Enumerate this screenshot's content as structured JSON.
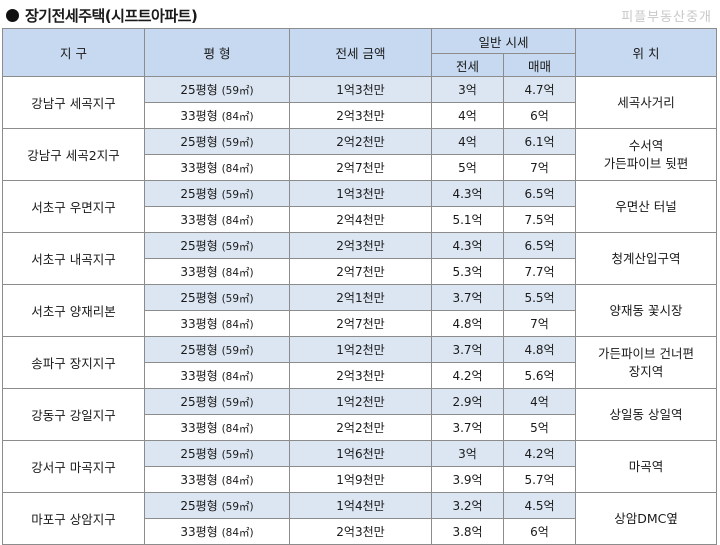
{
  "title": "장기전세주택(시프트아파트)",
  "watermark": "피플부동산중개",
  "headers": {
    "district": "지 구",
    "size": "평 형",
    "jeonse_price": "전세 금액",
    "market": "일반 시세",
    "market_jeonse": "전세",
    "market_sale": "매매",
    "location": "위 치"
  },
  "rows": [
    {
      "district": "강남구 세곡지구",
      "location": "세곡사거리",
      "units": [
        {
          "size": "25평형",
          "m2": "(59㎡)",
          "price": "1억3천만",
          "jeonse": "3억",
          "sale": "4.7억"
        },
        {
          "size": "33평형",
          "m2": "(84㎡)",
          "price": "2억3천만",
          "jeonse": "4억",
          "sale": "6억"
        }
      ]
    },
    {
      "district": "강남구 세곡2지구",
      "location": "수서역\n가든파이브 뒷편",
      "units": [
        {
          "size": "25평형",
          "m2": "(59㎡)",
          "price": "2억2천만",
          "jeonse": "4억",
          "sale": "6.1억"
        },
        {
          "size": "33평형",
          "m2": "(84㎡)",
          "price": "2억7천만",
          "jeonse": "5억",
          "sale": "7억"
        }
      ]
    },
    {
      "district": "서초구 우면지구",
      "location": "우면산 터널",
      "units": [
        {
          "size": "25평형",
          "m2": "(59㎡)",
          "price": "1억3천만",
          "jeonse": "4.3억",
          "sale": "6.5억"
        },
        {
          "size": "33평형",
          "m2": "(84㎡)",
          "price": "2억4천만",
          "jeonse": "5.1억",
          "sale": "7.5억"
        }
      ]
    },
    {
      "district": "서초구 내곡지구",
      "location": "청계산입구역",
      "units": [
        {
          "size": "25평형",
          "m2": "(59㎡)",
          "price": "2억3천만",
          "jeonse": "4.3억",
          "sale": "6.5억"
        },
        {
          "size": "33평형",
          "m2": "(84㎡)",
          "price": "2억7천만",
          "jeonse": "5.3억",
          "sale": "7.7억"
        }
      ]
    },
    {
      "district": "서초구 양재리본",
      "location": "양재동 꽃시장",
      "units": [
        {
          "size": "25평형",
          "m2": "(59㎡)",
          "price": "2억1천만",
          "jeonse": "3.7억",
          "sale": "5.5억"
        },
        {
          "size": "33평형",
          "m2": "(84㎡)",
          "price": "2억7천만",
          "jeonse": "4.8억",
          "sale": "7억"
        }
      ]
    },
    {
      "district": "송파구 장지지구",
      "location": "가든파이브 건너편\n장지역",
      "units": [
        {
          "size": "25평형",
          "m2": "(59㎡)",
          "price": "1억2천만",
          "jeonse": "3.7억",
          "sale": "4.8억"
        },
        {
          "size": "33평형",
          "m2": "(84㎡)",
          "price": "2억3천만",
          "jeonse": "4.2억",
          "sale": "5.6억"
        }
      ]
    },
    {
      "district": "강동구 강일지구",
      "location": "상일동 상일역",
      "units": [
        {
          "size": "25평형",
          "m2": "(59㎡)",
          "price": "1억2천만",
          "jeonse": "2.9억",
          "sale": "4억"
        },
        {
          "size": "33평형",
          "m2": "(84㎡)",
          "price": "2억2천만",
          "jeonse": "3.7억",
          "sale": "5억"
        }
      ]
    },
    {
      "district": "강서구 마곡지구",
      "location": "마곡역",
      "units": [
        {
          "size": "25평형",
          "m2": "(59㎡)",
          "price": "1억6천만",
          "jeonse": "3억",
          "sale": "4.2억"
        },
        {
          "size": "33평형",
          "m2": "(84㎡)",
          "price": "1억9천만",
          "jeonse": "3.9억",
          "sale": "5.7억"
        }
      ]
    },
    {
      "district": "마포구 상암지구",
      "location": "상암DMC옆",
      "units": [
        {
          "size": "25평형",
          "m2": "(59㎡)",
          "price": "1억4천만",
          "jeonse": "3.2억",
          "sale": "4.5억"
        },
        {
          "size": "33평형",
          "m2": "(84㎡)",
          "price": "2억3천만",
          "jeonse": "3.8억",
          "sale": "6억"
        }
      ]
    }
  ]
}
